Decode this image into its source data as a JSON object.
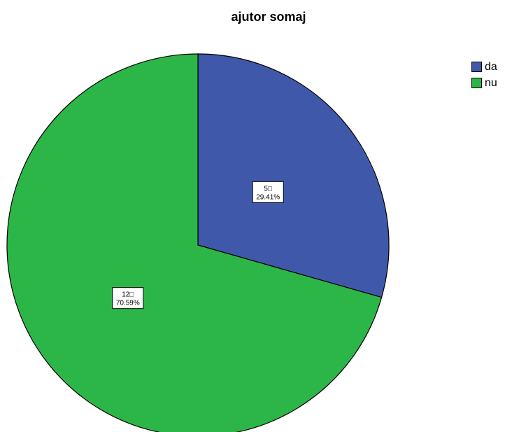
{
  "chart_data": {
    "type": "pie",
    "title": "ajutor somaj",
    "categories": [
      "da",
      "nu"
    ],
    "values": [
      5,
      12
    ],
    "percent_labels": [
      "29.41%",
      "70.59%"
    ],
    "count_labels": [
      "5□",
      "12□"
    ],
    "colors": [
      "#3f58aa",
      "#2db648"
    ],
    "legend_position": "top-right"
  }
}
